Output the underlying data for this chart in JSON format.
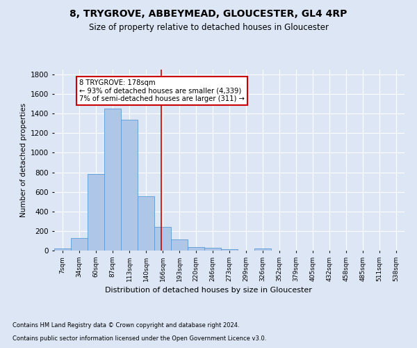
{
  "title": "8, TRYGROVE, ABBEYMEAD, GLOUCESTER, GL4 4RP",
  "subtitle": "Size of property relative to detached houses in Gloucester",
  "xlabel": "Distribution of detached houses by size in Gloucester",
  "ylabel": "Number of detached properties",
  "bin_labels": [
    "7sqm",
    "34sqm",
    "60sqm",
    "87sqm",
    "113sqm",
    "140sqm",
    "166sqm",
    "193sqm",
    "220sqm",
    "246sqm",
    "273sqm",
    "299sqm",
    "326sqm",
    "352sqm",
    "379sqm",
    "405sqm",
    "432sqm",
    "458sqm",
    "485sqm",
    "511sqm",
    "538sqm"
  ],
  "bar_heights": [
    20,
    130,
    780,
    1450,
    1340,
    555,
    245,
    115,
    35,
    25,
    15,
    0,
    20,
    0,
    0,
    0,
    0,
    0,
    0,
    0,
    0
  ],
  "bar_color": "#aec6e8",
  "bar_edge_color": "#5b9bd5",
  "vline_color": "#cc0000",
  "annotation_text": "8 TRYGROVE: 178sqm\n← 93% of detached houses are smaller (4,339)\n7% of semi-detached houses are larger (311) →",
  "annotation_box_color": "#ffffff",
  "annotation_box_edge_color": "#cc0000",
  "background_color": "#dce6f5",
  "plot_bg_color": "#dce6f5",
  "footer_line1": "Contains HM Land Registry data © Crown copyright and database right 2024.",
  "footer_line2": "Contains public sector information licensed under the Open Government Licence v3.0.",
  "ylim": [
    0,
    1850
  ],
  "vline_x_bin": 6.4,
  "bin_width": 27,
  "num_bins": 21
}
